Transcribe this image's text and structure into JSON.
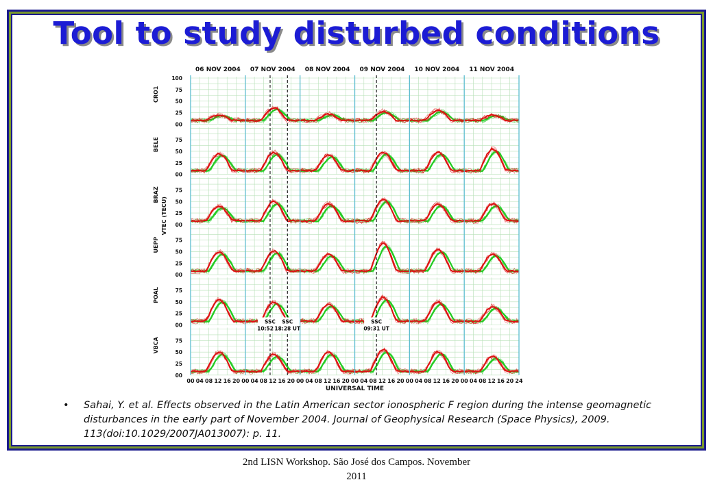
{
  "slide": {
    "title": "Tool to study disturbed conditions",
    "citation": "Sahai, Y. et al. Effects observed in the Latin American sector ionospheric F region during the intense geomagnetic disturbances in the early part of November 2004. Journal of Geophysical Research (Space Physics), 2009. 113(doi:10.1029/2007JA013007):  p. 11.",
    "bullet": "•",
    "footer": "2nd LISN Workshop. São José dos Campos. November 2011"
  },
  "colors": {
    "title": "#1c1cd4",
    "frame_border": "#1a1a8c",
    "frame_accent": "#7a9a2a",
    "quiet_series": "#22cc22",
    "disturbed_series": "#dd1111",
    "day_boundary": "#5bbcd0",
    "grid": "#b8e0b8"
  },
  "chart_data": {
    "type": "line",
    "dates": [
      "06 NOV 2004",
      "07 NOV 2004",
      "08 NOV 2004",
      "09 NOV 2004",
      "10 NOV 2004",
      "11 NOV 2004"
    ],
    "hour_ticks": [
      "00",
      "04",
      "08",
      "12",
      "16",
      "20",
      "00",
      "04",
      "08",
      "12",
      "16",
      "20",
      "00",
      "04",
      "08",
      "12",
      "16",
      "20",
      "00",
      "04",
      "08",
      "12",
      "16",
      "20",
      "00",
      "04",
      "08",
      "12",
      "16",
      "20",
      "00",
      "04",
      "08",
      "12",
      "16",
      "20",
      "24"
    ],
    "xlabel": "UNIVERSAL TIME",
    "ylabel": "VTEC (TECU)",
    "y_ticks": [
      "100",
      "75",
      "50",
      "25",
      "00"
    ],
    "ylim": [
      0,
      100
    ],
    "grid": true,
    "stations": [
      {
        "name": "CRO1",
        "day_max": [
          20,
          35,
          22,
          28,
          30,
          20
        ]
      },
      {
        "name": "BELE",
        "day_max": [
          45,
          48,
          42,
          48,
          48,
          55
        ]
      },
      {
        "name": "BRAZ",
        "day_max": [
          40,
          50,
          45,
          55,
          45,
          45
        ]
      },
      {
        "name": "UEPP",
        "day_max": [
          50,
          52,
          45,
          68,
          55,
          45
        ]
      },
      {
        "name": "POAL",
        "day_max": [
          55,
          50,
          45,
          60,
          50,
          40
        ]
      },
      {
        "name": "VBCA",
        "day_max": [
          50,
          45,
          50,
          55,
          50,
          40
        ]
      }
    ],
    "annotations": [
      {
        "label": "SSC",
        "time": "10:52 UT",
        "day_hour": 34.87
      },
      {
        "label": "SSC",
        "time": "18:28 UT",
        "day_hour": 42.47
      },
      {
        "label": "SSC",
        "time": "09:31 UT",
        "day_hour": 81.52
      }
    ]
  }
}
